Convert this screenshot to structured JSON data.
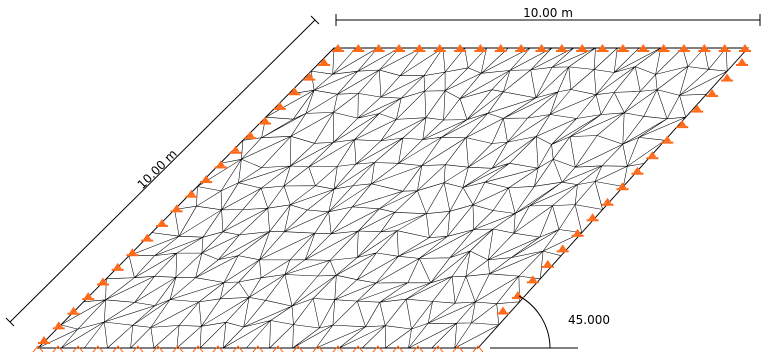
{
  "dimensions": {
    "top_length": "10.00 m",
    "slanted_length": "10.00 m",
    "angle": "45.000"
  },
  "colors": {
    "mesh": "#000000",
    "support": "#ff6a1a",
    "dimension": "#000000",
    "background": "#ffffff"
  },
  "icons": {
    "support": "pinned-support-icon"
  }
}
